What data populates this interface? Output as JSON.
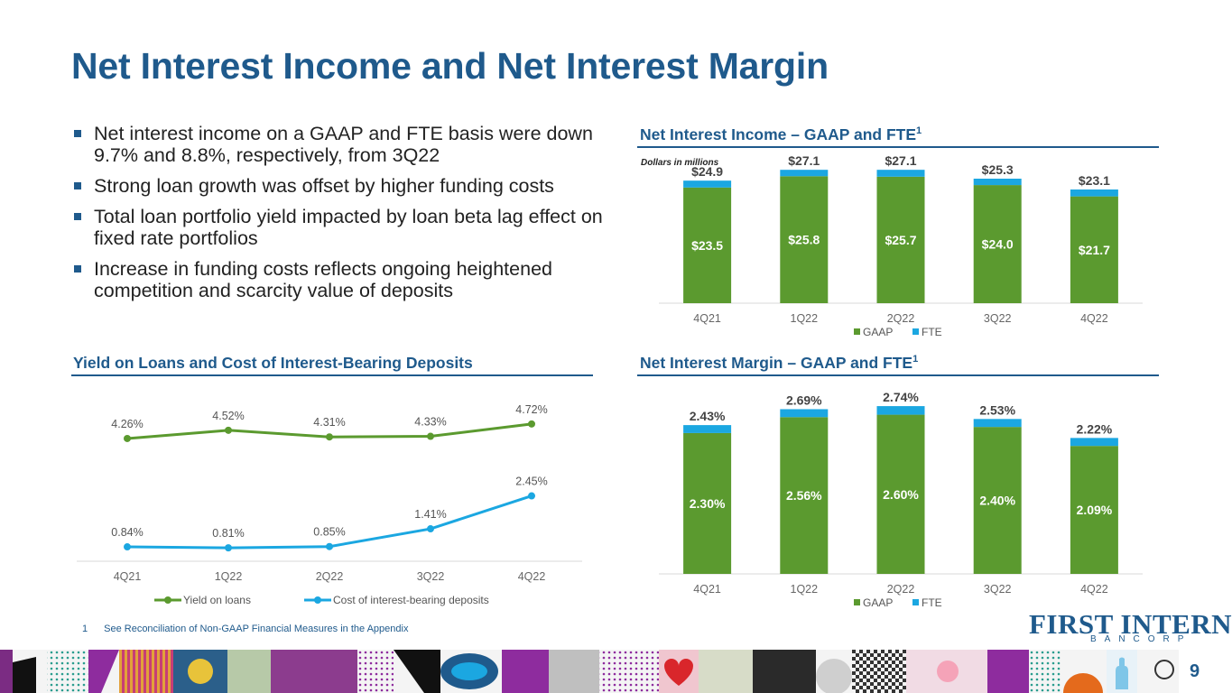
{
  "title": "Net Interest Income and Net Interest Margin",
  "bullets": [
    "Net interest income on a GAAP and FTE basis were down 9.7% and 8.8%, respectively, from 3Q22",
    "Strong loan growth was offset by higher funding costs",
    "Total loan portfolio yield impacted by loan beta lag effect on fixed rate portfolios",
    "Increase in funding costs reflects ongoing heightened competition and scarcity value of deposits"
  ],
  "sections": {
    "nii_title": "Net Interest Income – GAAP and FTE",
    "nim_title": "Net Interest Margin – GAAP and FTE",
    "yield_title": "Yield on Loans and Cost of Interest-Bearing Deposits",
    "footnote_marker": "1"
  },
  "colors": {
    "gaap": "#5b9a2f",
    "fte": "#1ba7e1",
    "yield_line": "#5b9a2f",
    "cost_line": "#1ba7e1",
    "brand": "#1f5a8c"
  },
  "chart_data": [
    {
      "id": "nii",
      "type": "bar",
      "stacked": true,
      "title": "Net Interest Income – GAAP and FTE1",
      "note": "Dollars in millions",
      "categories": [
        "4Q21",
        "1Q22",
        "2Q22",
        "3Q22",
        "4Q22"
      ],
      "series": [
        {
          "name": "GAAP",
          "values": [
            23.5,
            25.8,
            25.7,
            24.0,
            21.7
          ],
          "labels": [
            "$23.5",
            "$25.8",
            "$25.7",
            "$24.0",
            "$21.7"
          ]
        },
        {
          "name": "FTE",
          "values": [
            1.4,
            1.3,
            1.4,
            1.3,
            1.4
          ]
        }
      ],
      "totals": [
        24.9,
        27.1,
        27.1,
        25.3,
        23.1
      ],
      "total_labels": [
        "$24.9",
        "$27.1",
        "$27.1",
        "$25.3",
        "$23.1"
      ],
      "ylim": [
        0,
        27.5
      ],
      "legend": [
        "GAAP",
        "FTE"
      ]
    },
    {
      "id": "yield",
      "type": "line",
      "title": "Yield on Loans and Cost of Interest-Bearing Deposits",
      "categories": [
        "4Q21",
        "1Q22",
        "2Q22",
        "3Q22",
        "4Q22"
      ],
      "series": [
        {
          "name": "Yield on loans",
          "values": [
            4.26,
            4.52,
            4.31,
            4.33,
            4.72
          ],
          "labels": [
            "4.26%",
            "4.52%",
            "4.31%",
            "4.33%",
            "4.72%"
          ]
        },
        {
          "name": "Cost of interest-bearing deposits",
          "values": [
            0.84,
            0.81,
            0.85,
            1.41,
            2.45
          ],
          "labels": [
            "0.84%",
            "0.81%",
            "0.85%",
            "1.41%",
            "2.45%"
          ]
        }
      ],
      "ylim": [
        0.5,
        5.0
      ],
      "legend": [
        "Yield on loans",
        "Cost of interest-bearing deposits"
      ]
    },
    {
      "id": "nim",
      "type": "bar",
      "stacked": true,
      "title": "Net Interest Margin – GAAP and FTE1",
      "categories": [
        "4Q21",
        "1Q22",
        "2Q22",
        "3Q22",
        "4Q22"
      ],
      "series": [
        {
          "name": "GAAP",
          "values": [
            2.3,
            2.56,
            2.6,
            2.4,
            2.09
          ],
          "labels": [
            "2.30%",
            "2.56%",
            "2.60%",
            "2.40%",
            "2.09%"
          ]
        },
        {
          "name": "FTE",
          "values": [
            0.13,
            0.13,
            0.14,
            0.13,
            0.13
          ]
        }
      ],
      "totals": [
        2.43,
        2.69,
        2.74,
        2.53,
        2.22
      ],
      "total_labels": [
        "2.43%",
        "2.69%",
        "2.74%",
        "2.53%",
        "2.22%"
      ],
      "ylim": [
        0,
        2.8
      ],
      "legend": [
        "GAAP",
        "FTE"
      ]
    }
  ],
  "footnote": {
    "number": "1",
    "text": "See Reconciliation of Non-GAAP Financial Measures in the Appendix"
  },
  "logo": {
    "main": "FIRST INTERNET",
    "sub": "BANCORP"
  },
  "page_number": "9"
}
